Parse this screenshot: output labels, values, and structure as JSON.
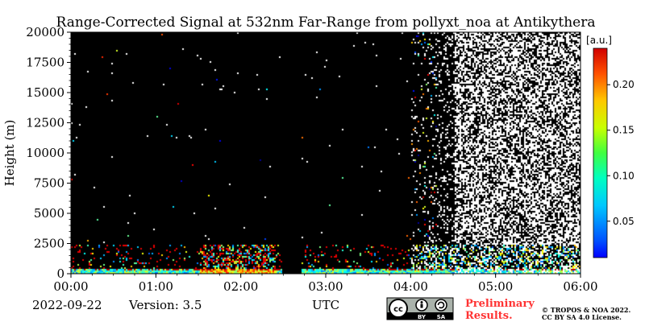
{
  "chart_data": {
    "type": "heatmap",
    "title": "Range-Corrected Signal at 532nm Far-Range from pollyxt_noa at Antikythera",
    "xlabel": "UTC",
    "ylabel": "Height (m)",
    "xlim": [
      "00:00",
      "06:00"
    ],
    "ylim": [
      0,
      20000
    ],
    "x_ticks": [
      "00:00",
      "01:00",
      "02:00",
      "03:00",
      "04:00",
      "05:00",
      "06:00"
    ],
    "y_ticks": [
      0,
      2500,
      5000,
      7500,
      10000,
      12500,
      15000,
      17500,
      20000
    ],
    "colorbar": {
      "label": "[a.u.]",
      "min": 0.01,
      "max": 0.24,
      "ticks": [
        0.05,
        0.1,
        0.15,
        0.2
      ],
      "tick_labels": [
        "0.05",
        "0.10",
        "0.15",
        "0.20"
      ],
      "colormap": "jet",
      "below_min_color": "#000000",
      "above_max_color": "#ffffff"
    },
    "features": {
      "data_gap_hours": [
        2.48,
        2.7
      ],
      "boundary_layer_top_m": 500,
      "noise_onset_hour": 4.0,
      "saturation_onset_hour": 4.5
    }
  },
  "footer": {
    "date": "2022-09-22",
    "version": "Version: 3.5",
    "preliminary": [
      "Preliminary",
      "Results."
    ],
    "copyright": [
      "© TROPOS & NOA 2022.",
      "CC BY SA 4.0 License."
    ],
    "cc_badge": [
      "BY",
      "SA"
    ]
  }
}
